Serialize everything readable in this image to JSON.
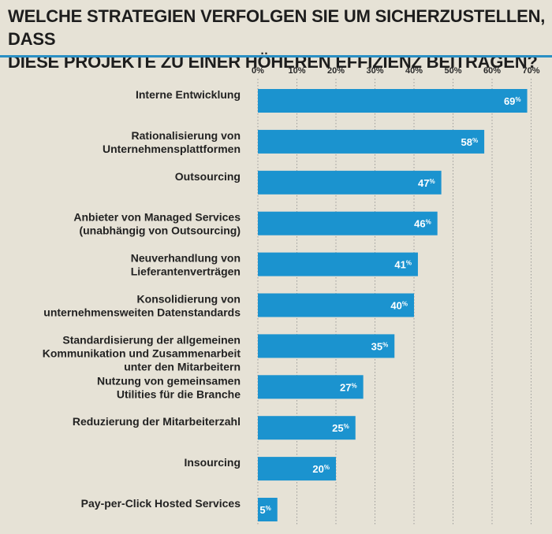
{
  "title_lines": [
    "WELCHE STRATEGIEN VERFOLGEN SIE UM SICHERZUSTELLEN, DASS",
    "DIESE PROJEKTE ZU EINER HÖHEREN EFFIZIENZ BEITRAGEN?"
  ],
  "colors": {
    "bar": "#1b93cf",
    "accent_rule": "#2a8fc4",
    "background": "#e6e2d6",
    "grid": "#8a8a8a"
  },
  "chart_data": {
    "type": "bar",
    "orientation": "horizontal",
    "title": "WELCHE STRATEGIEN VERFOLGEN SIE UM SICHERZUSTELLEN, DASS DIESE PROJEKTE ZU EINER HÖHEREN EFFIZIENZ BEITRAGEN?",
    "xlim": [
      0,
      70
    ],
    "ticks": [
      "0%",
      "10%",
      "20%",
      "30%",
      "40%",
      "50%",
      "60%",
      "70%"
    ],
    "tick_values": [
      0,
      10,
      20,
      30,
      40,
      50,
      60,
      70
    ],
    "grid": true,
    "categories": [
      [
        "Interne Entwicklung"
      ],
      [
        "Rationalisierung von",
        "Unternehmensplattformen"
      ],
      [
        "Outsourcing"
      ],
      [
        "Anbieter von Managed Services",
        "(unabhängig von Outsourcing)"
      ],
      [
        "Neuverhandlung von",
        "Lieferantenverträgen"
      ],
      [
        "Konsolidierung von",
        "unternehmensweiten Datenstandards"
      ],
      [
        "Standardisierung der allgemeinen",
        "Kommunikation und Zusammenarbeit",
        "unter den Mitarbeitern"
      ],
      [
        "Nutzung von gemeinsamen",
        "Utilities für die Branche"
      ],
      [
        "Reduzierung der Mitarbeiterzahl"
      ],
      [
        "Insourcing"
      ],
      [
        "Pay-per-Click Hosted Services"
      ]
    ],
    "values": [
      69,
      58,
      47,
      46,
      41,
      40,
      35,
      27,
      25,
      20,
      5
    ],
    "value_labels": [
      "69",
      "58",
      "47",
      "46",
      "41",
      "40",
      "35",
      "27",
      "25",
      "20",
      "5"
    ],
    "value_suffix": "%"
  }
}
